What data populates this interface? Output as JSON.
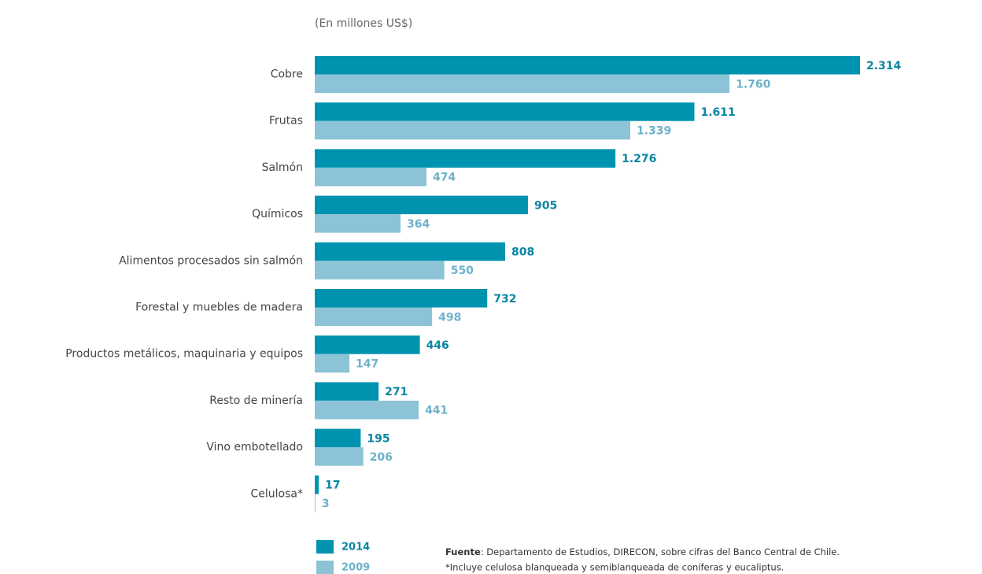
{
  "chart_data": {
    "type": "bar",
    "orientation": "horizontal",
    "subtitle": "(En millones US$)",
    "categories": [
      "Cobre",
      "Frutas",
      "Salmón",
      "Químicos",
      "Alimentos procesados sin salmón",
      "Forestal y muebles de madera",
      "Productos metálicos, maquinaria y equipos",
      "Resto de minería",
      "Vino embotellado",
      "Celulosa*"
    ],
    "series": [
      {
        "name": "2014",
        "color": "#0093b0",
        "label_color": "#0a86a2",
        "values": [
          2314,
          1611,
          1276,
          905,
          808,
          732,
          446,
          271,
          195,
          17
        ],
        "value_labels": [
          "2.314",
          "1.611",
          "1.276",
          "905",
          "808",
          "732",
          "446",
          "271",
          "195",
          "17"
        ]
      },
      {
        "name": "2009",
        "color": "#8cc3d6",
        "label_color": "#6cb2ca",
        "values": [
          1760,
          1339,
          474,
          364,
          550,
          498,
          147,
          441,
          206,
          3
        ],
        "value_labels": [
          "1.760",
          "1.339",
          "474",
          "364",
          "550",
          "498",
          "147",
          "441",
          "206",
          "3"
        ]
      }
    ],
    "source_label": "Fuente",
    "source": ": Departamento de Estudios, DIRECON, sobre cifras del Banco Central de Chile.",
    "note": "*Incluye celulosa blanqueada y semiblanqueada de coníferas y eucaliptus."
  }
}
